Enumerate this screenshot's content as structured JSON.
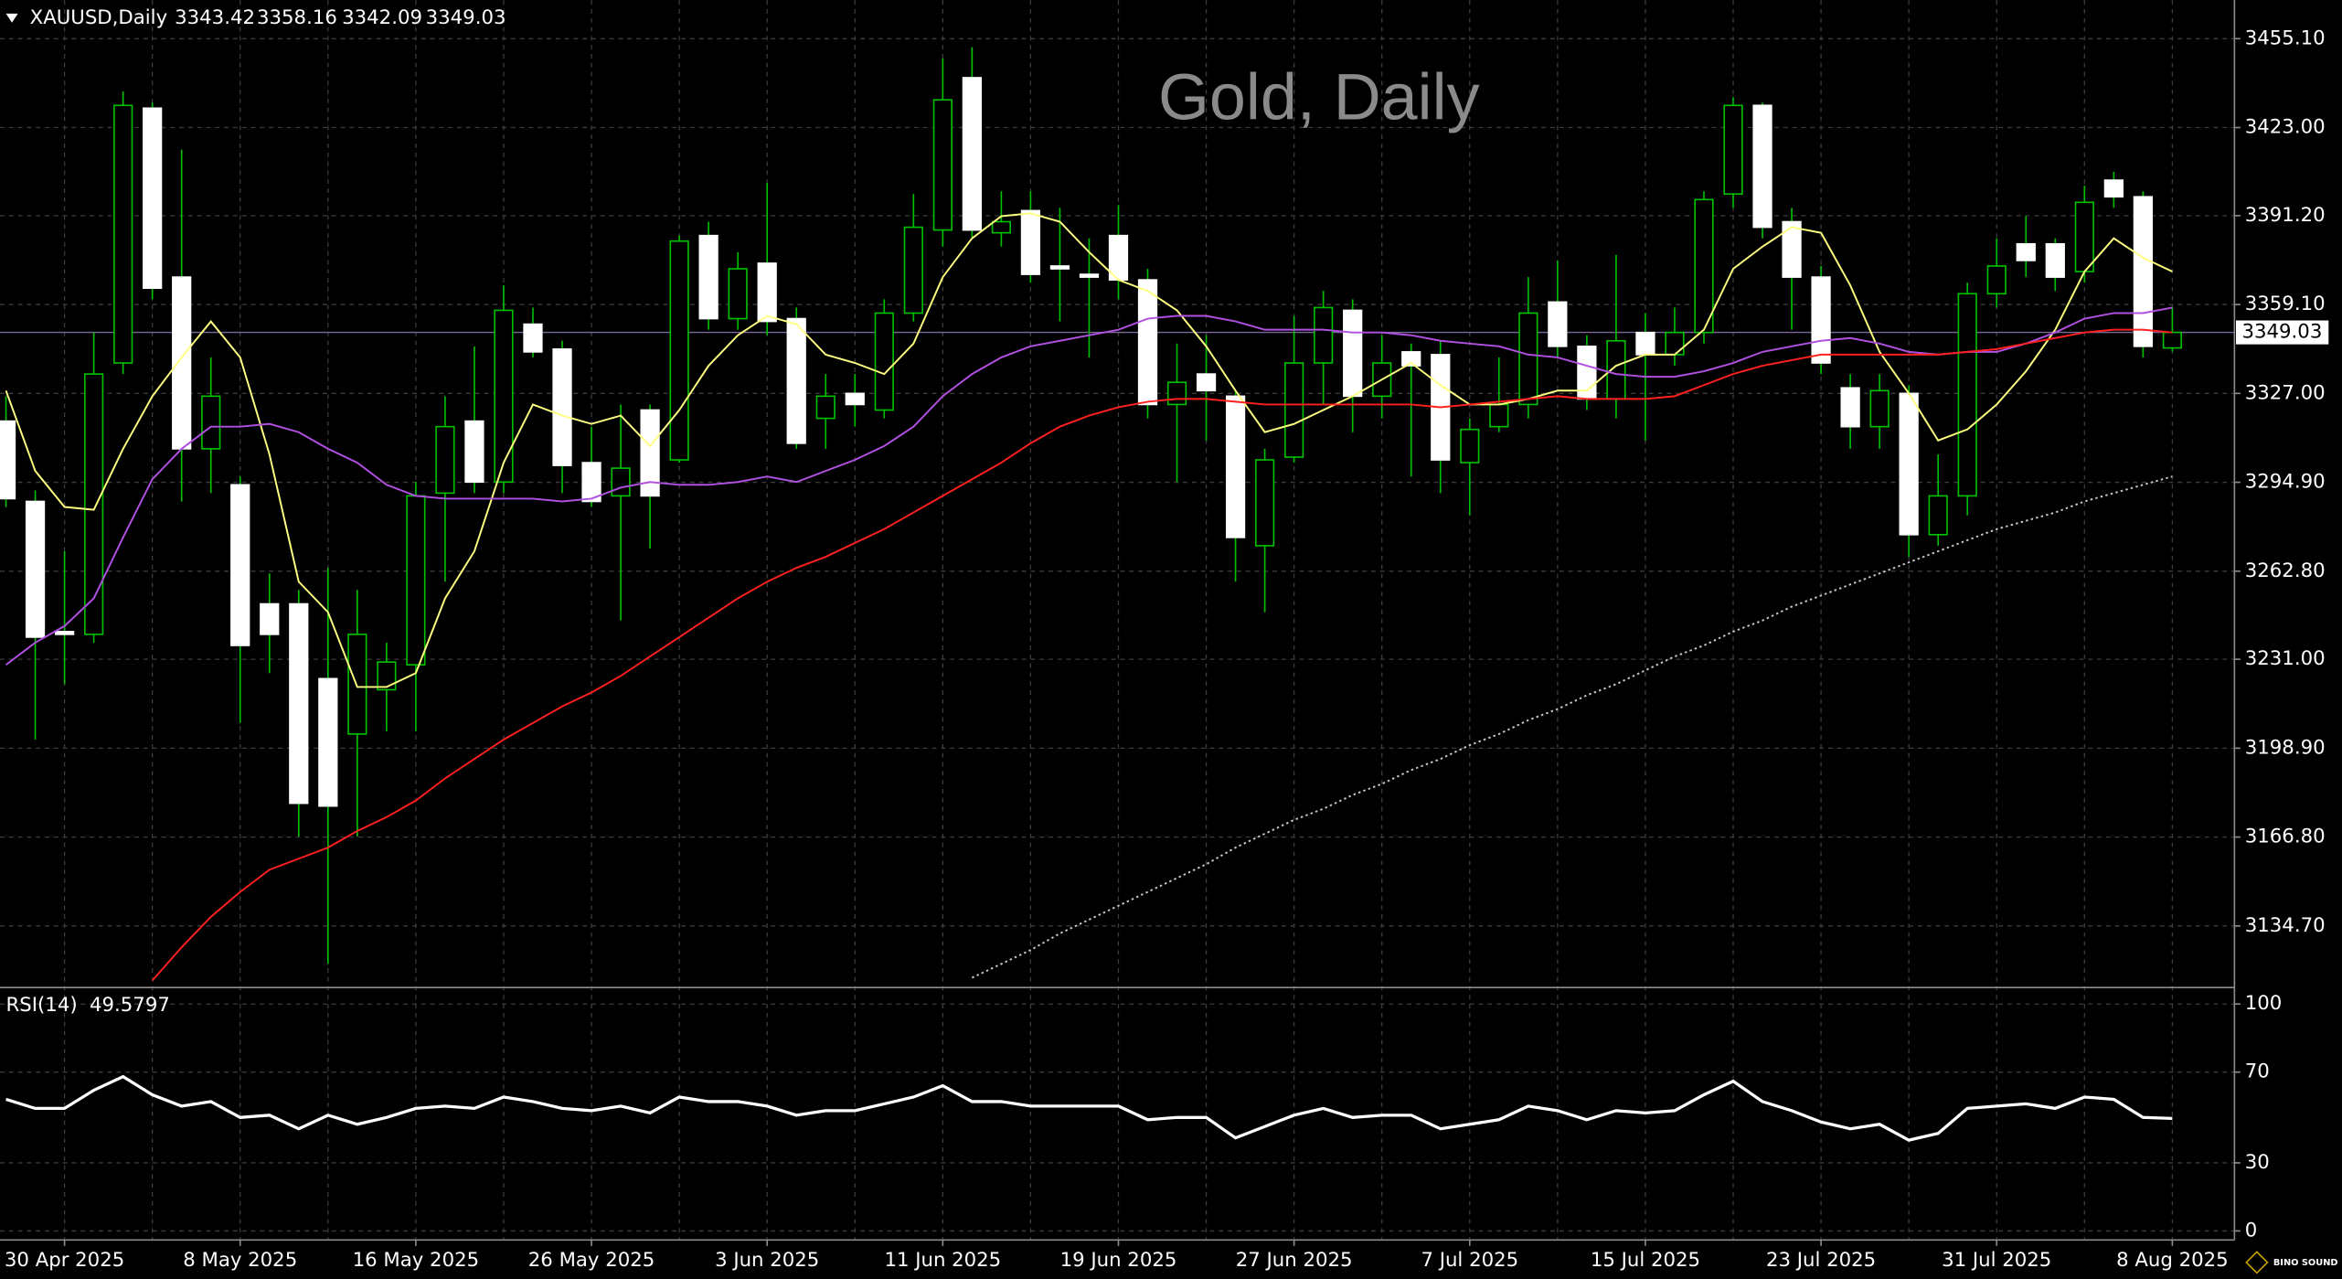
{
  "chart_data": [
    {
      "type": "candlestick",
      "symbol": "XAUUSD,Daily",
      "title": "Gold, Daily",
      "categories": [
        null,
        null,
        "30 Apr 2025",
        null,
        null,
        null,
        null,
        null,
        "8 May 2025",
        null,
        null,
        null,
        null,
        null,
        "16 May 2025",
        null,
        null,
        null,
        null,
        null,
        "26 May 2025",
        null,
        null,
        null,
        null,
        null,
        "3 Jun 2025",
        null,
        null,
        null,
        null,
        null,
        "11 Jun 2025",
        null,
        null,
        null,
        null,
        null,
        "19 Jun 2025",
        null,
        null,
        null,
        null,
        null,
        "27 Jun 2025",
        null,
        null,
        null,
        null,
        null,
        "7 Jul 2025",
        null,
        null,
        null,
        null,
        null,
        "15 Jul 2025",
        null,
        null,
        null,
        null,
        null,
        "23 Jul 2025",
        null,
        null,
        null,
        null,
        null,
        "31 Jul 2025",
        null,
        null,
        null,
        null,
        null,
        "8 Aug 2025"
      ],
      "open": [
        3317,
        3288,
        3241,
        3240,
        3338,
        3430,
        3369,
        3307,
        3294,
        3251,
        3251,
        3224,
        3204,
        3220,
        3229,
        3291,
        3317,
        3295,
        3352,
        3343,
        3302,
        3290,
        3321,
        3303,
        3384,
        3354,
        3374,
        3354,
        3318,
        3327,
        3321,
        3356,
        3386,
        3441,
        3385,
        3393,
        3373,
        3370,
        3384,
        3368,
        3323,
        3334,
        3326,
        3272,
        3304,
        3338,
        3357,
        3326,
        3342,
        3341,
        3302,
        3315,
        3323,
        3360,
        3344,
        3325,
        3349,
        3341,
        3349,
        3399,
        3431,
        3389,
        3369,
        3329,
        3315,
        3327,
        3276,
        3290,
        3363,
        3381,
        3381,
        3371,
        3404,
        3398,
        3343.42
      ],
      "high": [
        3326,
        3292,
        3270,
        3349,
        3436,
        3432,
        3415,
        3340,
        3297,
        3262,
        3256,
        3264,
        3256,
        3237,
        3295,
        3326,
        3344,
        3366,
        3358,
        3346,
        3315,
        3323,
        3323,
        3384,
        3389,
        3378,
        3403,
        3358,
        3334,
        3334,
        3361,
        3399,
        3448,
        3452,
        3400,
        3400,
        3394,
        3383,
        3395,
        3372,
        3345,
        3348,
        3328,
        3307,
        3355,
        3364,
        3361,
        3348,
        3345,
        3346,
        3318,
        3340,
        3369,
        3375,
        3348,
        3377,
        3356,
        3358,
        3400,
        3434,
        3432,
        3394,
        3373,
        3334,
        3334,
        3330,
        3305,
        3367,
        3383,
        3391,
        3383,
        3402,
        3407,
        3400,
        3358.16
      ],
      "low": [
        3286,
        3202,
        3222,
        3237,
        3334,
        3361,
        3288,
        3291,
        3208,
        3226,
        3167,
        3121,
        3167,
        3205,
        3205,
        3259,
        3291,
        3291,
        3340,
        3291,
        3286,
        3245,
        3271,
        3302,
        3350,
        3350,
        3348,
        3307,
        3307,
        3315,
        3318,
        3353,
        3380,
        3383,
        3380,
        3367,
        3353,
        3340,
        3361,
        3318,
        3295,
        3310,
        3259,
        3248,
        3302,
        3323,
        3313,
        3318,
        3297,
        3291,
        3283,
        3313,
        3318,
        3340,
        3321,
        3318,
        3310,
        3337,
        3345,
        3394,
        3383,
        3350,
        3334,
        3307,
        3307,
        3268,
        3272,
        3283,
        3358,
        3369,
        3364,
        3367,
        3394,
        3340,
        3342.09
      ],
      "close": [
        3289,
        3239,
        3240,
        3334,
        3431,
        3365,
        3307,
        3326,
        3236,
        3240,
        3179,
        3178,
        3240,
        3230,
        3290,
        3315,
        3295,
        3357,
        3342,
        3301,
        3288,
        3300,
        3290,
        3382,
        3354,
        3372,
        3353,
        3309,
        3326,
        3323,
        3356,
        3387,
        3433,
        3386,
        3389,
        3370,
        3372,
        3369,
        3368,
        3323,
        3331,
        3328,
        3275,
        3303,
        3338,
        3358,
        3326,
        3338,
        3337,
        3303,
        3314,
        3323,
        3356,
        3344,
        3325,
        3346,
        3341,
        3349,
        3397,
        3431,
        3387,
        3369,
        3338,
        3315,
        3328,
        3276,
        3290,
        3363,
        3373,
        3375,
        3369,
        3396,
        3398,
        3344,
        3349.03
      ],
      "up_color": "#000000",
      "down_color": "#ffffff",
      "wick_color": "#00c000",
      "series": [
        {
          "color": "#ffff80",
          "line_style": "solid",
          "values": [
            3328,
            3299,
            3286,
            3285,
            3307,
            3326,
            3340,
            3353,
            3340,
            3305,
            3259,
            3248,
            3221,
            3221,
            3226,
            3253,
            3270,
            3302,
            3323,
            3319,
            3316,
            3319,
            3308,
            3321,
            3337,
            3348,
            3355,
            3352,
            3341,
            3338,
            3334,
            3345,
            3369,
            3383,
            3391,
            3392,
            3389,
            3378,
            3368,
            3364,
            3357,
            3344,
            3328,
            3313,
            3316,
            3321,
            3326,
            3332,
            3338,
            3330,
            3323,
            3323,
            3325,
            3328,
            3328,
            3337,
            3341,
            3341,
            3350,
            3372,
            3380,
            3387,
            3385,
            3366,
            3342,
            3327,
            3310,
            3314,
            3323,
            3335,
            3350,
            3371,
            3383,
            3376,
            3371
          ]
        },
        {
          "color": "#b050e0",
          "line_style": "solid",
          "values": [
            3229,
            3237,
            3243,
            3253,
            3275,
            3296,
            3307,
            3315,
            3315,
            3316,
            3313,
            3307,
            3302,
            3294,
            3290,
            3289,
            3289,
            3289,
            3289,
            3288,
            3289,
            3293,
            3295,
            3294,
            3294,
            3295,
            3297,
            3295,
            3299,
            3303,
            3308,
            3315,
            3326,
            3334,
            3340,
            3344,
            3346,
            3348,
            3350,
            3354,
            3355,
            3355,
            3353,
            3350,
            3350,
            3350,
            3349,
            3349,
            3348,
            3346,
            3345,
            3344,
            3341,
            3340,
            3337,
            3334,
            3333,
            3333,
            3335,
            3338,
            3342,
            3344,
            3346,
            3347,
            3345,
            3342,
            3341,
            3342,
            3342,
            3345,
            3349,
            3354,
            3356,
            3356,
            3358
          ]
        },
        {
          "color": "#ff2020",
          "line_style": "solid",
          "values": [
            null,
            null,
            null,
            null,
            null,
            3115,
            3127,
            3138,
            3147,
            3155,
            3159,
            3163,
            3169,
            3174,
            3180,
            3188,
            3195,
            3202,
            3208,
            3214,
            3219,
            3225,
            3232,
            3239,
            3246,
            3253,
            3259,
            3264,
            3268,
            3273,
            3278,
            3284,
            3290,
            3296,
            3302,
            3309,
            3315,
            3319,
            3322,
            3324,
            3325,
            3325,
            3324,
            3323,
            3323,
            3323,
            3323,
            3323,
            3323,
            3322,
            3323,
            3324,
            3325,
            3326,
            3325,
            3325,
            3325,
            3326,
            3330,
            3334,
            3337,
            3339,
            3341,
            3341,
            3341,
            3341,
            3341,
            3342,
            3343,
            3345,
            3347,
            3349,
            3350,
            3350,
            3349
          ]
        },
        {
          "color": "#c8c8c8",
          "line_style": "dotted",
          "values": [
            null,
            null,
            null,
            null,
            null,
            null,
            null,
            null,
            null,
            null,
            null,
            null,
            null,
            null,
            null,
            null,
            null,
            null,
            null,
            null,
            null,
            null,
            null,
            null,
            null,
            null,
            null,
            null,
            null,
            null,
            null,
            null,
            null,
            3116,
            3121,
            3126,
            3132,
            3137,
            3142,
            3147,
            3152,
            3157,
            3163,
            3168,
            3173,
            3177,
            3182,
            3186,
            3191,
            3195,
            3200,
            3204,
            3209,
            3213,
            3218,
            3222,
            3227,
            3232,
            3236,
            3241,
            3245,
            3250,
            3254,
            3258,
            3262,
            3266,
            3270,
            3274,
            3278,
            3281,
            3284,
            3288,
            3291,
            3294,
            3297
          ]
        }
      ],
      "price_line_color": "#7a6a9a",
      "ylim": [
        3113,
        3469
      ],
      "yticks": [
        {
          "value": 3455.1,
          "label": "3455.10"
        },
        {
          "value": 3423,
          "label": "3423.00"
        },
        {
          "value": 3391.2,
          "label": "3391.20"
        },
        {
          "value": 3359.1,
          "label": "3359.10"
        },
        {
          "value": 3327,
          "label": "3327.00"
        },
        {
          "value": 3294.9,
          "label": "3294.90"
        },
        {
          "value": 3262.8,
          "label": "3262.80"
        },
        {
          "value": 3231,
          "label": "3231.00"
        },
        {
          "value": 3198.9,
          "label": "3198.90"
        },
        {
          "value": 3166.8,
          "label": "3166.80"
        },
        {
          "value": 3134.7,
          "label": "3134.70"
        }
      ],
      "grid": true
    },
    {
      "type": "line",
      "title": "RSI(14)",
      "color": "#ffffff",
      "values": [
        58,
        54,
        54,
        62,
        68,
        60,
        55,
        57,
        50,
        51,
        45,
        51,
        47,
        50,
        54,
        55,
        54,
        59,
        57,
        54,
        53,
        55,
        52,
        59,
        57,
        57,
        55,
        51,
        53,
        53,
        56,
        59,
        64,
        57,
        57,
        55,
        55,
        55,
        55,
        49,
        50,
        50,
        41,
        46,
        51,
        54,
        50,
        51,
        51,
        45,
        47,
        49,
        55,
        53,
        49,
        53,
        52,
        53,
        60,
        66,
        57,
        53,
        48,
        45,
        47,
        40,
        43,
        54,
        55,
        56,
        54,
        59,
        58,
        50,
        49.5797
      ],
      "ylim": [
        -4,
        106.6
      ],
      "yticks": [
        100,
        70,
        30,
        0
      ],
      "grid": true
    },
    "BINO SOUND"
  ]
}
